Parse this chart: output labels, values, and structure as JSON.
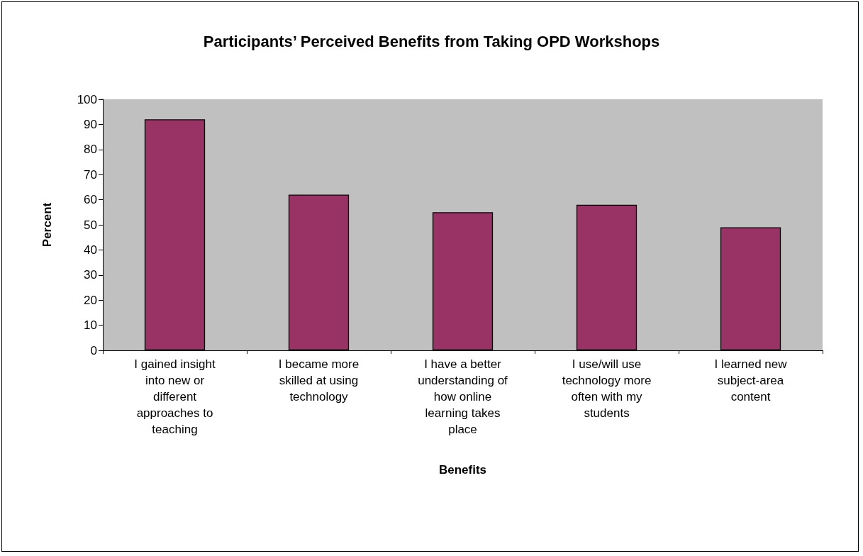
{
  "chart_data": {
    "type": "bar",
    "title": "Participants’ Perceived Benefits from Taking OPD Workshops",
    "xlabel": "Benefits",
    "ylabel": "Percent",
    "categories": [
      "I gained insight into new or different approaches to teaching",
      "I became more skilled at using technology",
      "I have a better understanding of how online learning takes place",
      "I use/will use technology more often with my students",
      "I learned new subject-area content"
    ],
    "values": [
      92,
      62,
      55,
      58,
      49
    ],
    "color": "#993366",
    "ylim": [
      0,
      100
    ],
    "yticks": [
      0,
      10,
      20,
      30,
      40,
      50,
      60,
      70,
      80,
      90,
      100
    ],
    "grid": false
  }
}
